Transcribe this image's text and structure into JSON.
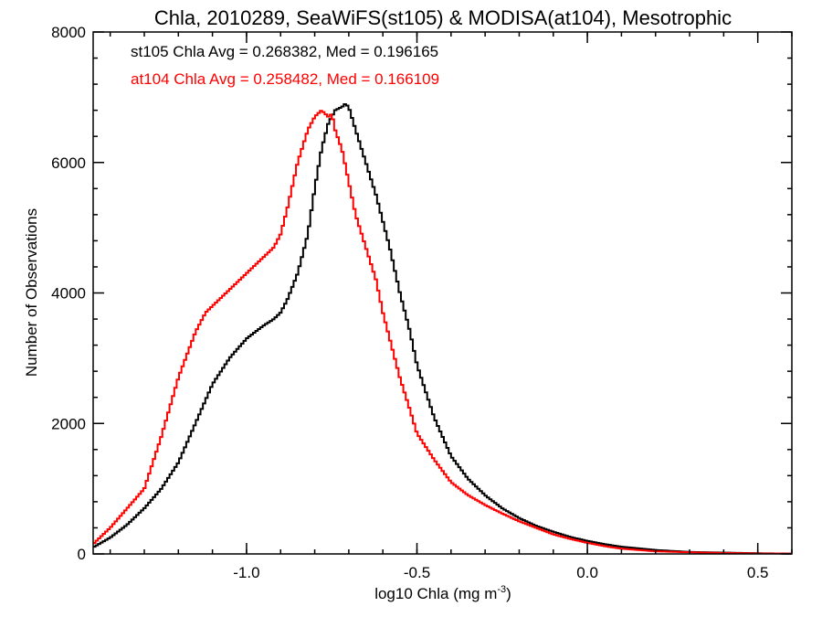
{
  "chart_data": {
    "type": "line",
    "title": "Chla, 2010289, SeaWiFS(st105) & MODISA(at104), Mesotrophic",
    "xlabel": "log10 Chla (mg m",
    "xlabel_sup": "-3",
    "xlabel_tail": ")",
    "ylabel": "Number of Observations",
    "xlim": [
      -1.45,
      0.6
    ],
    "ylim": [
      0,
      8000
    ],
    "x_ticks": [
      -1.0,
      -0.5,
      0.0,
      0.5
    ],
    "x_tick_labels": [
      "-1.0",
      "-0.5",
      "0.0",
      "0.5"
    ],
    "y_ticks": [
      0,
      2000,
      4000,
      6000,
      8000
    ],
    "y_tick_labels": [
      "0",
      "2000",
      "4000",
      "6000",
      "8000"
    ],
    "grid": false,
    "annotations": [
      {
        "text": "st105 Chla Avg = 0.268382, Med = 0.196165",
        "color": "#000000"
      },
      {
        "text": "at104 Chla Avg = 0.258482, Med = 0.166109",
        "color": "#ff0000"
      }
    ],
    "series": [
      {
        "color": "#000000",
        "x": [
          -1.45,
          -1.4,
          -1.35,
          -1.3,
          -1.25,
          -1.2,
          -1.15,
          -1.1,
          -1.05,
          -1.0,
          -0.95,
          -0.92,
          -0.9,
          -0.88,
          -0.85,
          -0.82,
          -0.8,
          -0.78,
          -0.76,
          -0.74,
          -0.72,
          -0.71,
          -0.7,
          -0.68,
          -0.65,
          -0.62,
          -0.6,
          -0.58,
          -0.55,
          -0.52,
          -0.5,
          -0.45,
          -0.4,
          -0.35,
          -0.3,
          -0.25,
          -0.2,
          -0.15,
          -0.1,
          -0.05,
          0.0,
          0.05,
          0.1,
          0.2,
          0.3,
          0.4,
          0.5,
          0.6
        ],
        "values": [
          100,
          250,
          450,
          700,
          1000,
          1400,
          2000,
          2600,
          3000,
          3300,
          3500,
          3600,
          3700,
          3900,
          4300,
          4900,
          5600,
          6200,
          6600,
          6800,
          6850,
          6900,
          6850,
          6500,
          6000,
          5500,
          5100,
          4700,
          4000,
          3400,
          2900,
          2100,
          1500,
          1150,
          900,
          700,
          550,
          430,
          340,
          260,
          200,
          150,
          110,
          60,
          30,
          20,
          10,
          5
        ]
      },
      {
        "color": "#ff0000",
        "x": [
          -1.45,
          -1.4,
          -1.35,
          -1.3,
          -1.25,
          -1.2,
          -1.15,
          -1.12,
          -1.1,
          -1.05,
          -1.0,
          -0.95,
          -0.92,
          -0.9,
          -0.88,
          -0.85,
          -0.82,
          -0.8,
          -0.78,
          -0.76,
          -0.75,
          -0.74,
          -0.72,
          -0.7,
          -0.68,
          -0.65,
          -0.62,
          -0.6,
          -0.58,
          -0.55,
          -0.52,
          -0.5,
          -0.45,
          -0.4,
          -0.35,
          -0.3,
          -0.25,
          -0.2,
          -0.15,
          -0.1,
          -0.05,
          0.0,
          0.05,
          0.1,
          0.2,
          0.3,
          0.4,
          0.5,
          0.6
        ],
        "values": [
          150,
          400,
          700,
          1000,
          1800,
          2700,
          3400,
          3700,
          3800,
          4050,
          4300,
          4550,
          4700,
          4900,
          5300,
          6000,
          6500,
          6700,
          6800,
          6700,
          6750,
          6500,
          6200,
          5700,
          5200,
          4700,
          4200,
          3700,
          3300,
          2700,
          2200,
          1850,
          1450,
          1100,
          900,
          750,
          620,
          500,
          400,
          300,
          230,
          170,
          120,
          80,
          40,
          25,
          15,
          8,
          5
        ]
      }
    ]
  }
}
